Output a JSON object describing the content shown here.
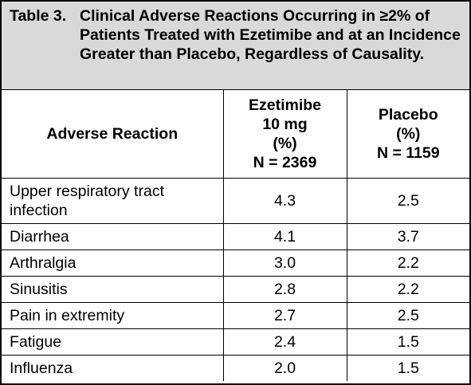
{
  "table": {
    "title": {
      "label": "Table 3.",
      "text": "Clinical Adverse Reactions Occurring in ≥2% of Patients Treated with Ezetimibe and at an Incidence Greater than Placebo, Regardless of Causality."
    },
    "columns": [
      [
        "Adverse Reaction"
      ],
      [
        "Ezetimibe",
        "10 mg",
        "(%)",
        "N = 2369"
      ],
      [
        "Placebo",
        "(%)",
        "N = 1159"
      ]
    ],
    "rows": [
      [
        "Upper respiratory tract infection",
        "4.3",
        "2.5"
      ],
      [
        "Diarrhea",
        "4.1",
        "3.7"
      ],
      [
        "Arthralgia",
        "3.0",
        "2.2"
      ],
      [
        "Sinusitis",
        "2.8",
        "2.2"
      ],
      [
        "Pain in extremity",
        "2.7",
        "2.5"
      ],
      [
        "Fatigue",
        "2.4",
        "1.5"
      ],
      [
        "Influenza",
        "2.0",
        "1.5"
      ]
    ]
  }
}
